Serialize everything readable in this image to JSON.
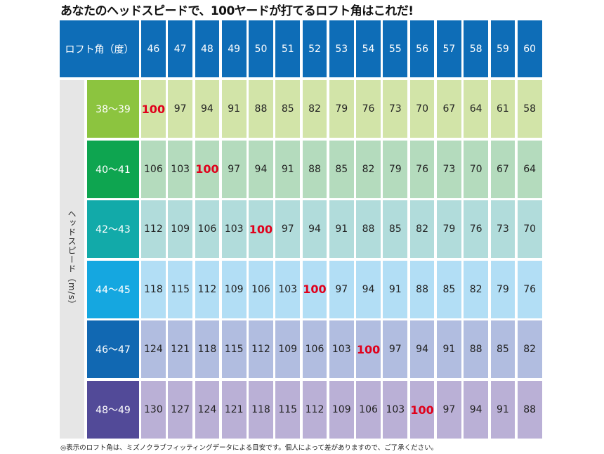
{
  "title": "あなたのヘッドスピードで、100ヤードが打てるロフト角はこれだ!",
  "footnote": "◎表示のロフト角は、ミズノクラブフィッティングデータによる目安です。個人によって差がありますので、ご了承ください。",
  "chart_data": {
    "type": "table",
    "corner_label": "ロフト角（度）",
    "row_axis_label": "ヘッドスピード（m/s）",
    "columns": [
      "46",
      "47",
      "48",
      "49",
      "50",
      "51",
      "52",
      "53",
      "54",
      "55",
      "56",
      "57",
      "58",
      "59",
      "60"
    ],
    "rows": [
      {
        "label": "38〜39",
        "values": [
          100,
          97,
          94,
          91,
          88,
          85,
          82,
          79,
          76,
          73,
          70,
          67,
          64,
          61,
          58
        ]
      },
      {
        "label": "40〜41",
        "values": [
          106,
          103,
          100,
          97,
          94,
          91,
          88,
          85,
          82,
          79,
          76,
          73,
          70,
          67,
          64
        ]
      },
      {
        "label": "42〜43",
        "values": [
          112,
          109,
          106,
          103,
          100,
          97,
          94,
          91,
          88,
          85,
          82,
          79,
          76,
          73,
          70
        ]
      },
      {
        "label": "44〜45",
        "values": [
          118,
          115,
          112,
          109,
          106,
          103,
          100,
          97,
          94,
          91,
          88,
          85,
          82,
          79,
          76
        ]
      },
      {
        "label": "46〜47",
        "values": [
          124,
          121,
          118,
          115,
          112,
          109,
          106,
          103,
          100,
          97,
          94,
          91,
          88,
          85,
          82
        ]
      },
      {
        "label": "48〜49",
        "values": [
          130,
          127,
          124,
          121,
          118,
          115,
          112,
          109,
          106,
          103,
          100,
          97,
          94,
          91,
          88
        ]
      }
    ],
    "highlight_value": 100,
    "colors": {
      "header": "#0e6db7",
      "highlight_text": "#e0001b",
      "row_label_bg": [
        "#8cc43f",
        "#0ea550",
        "#12aaa9",
        "#15a7e0",
        "#1168b2",
        "#524a98"
      ],
      "row_cell_bg": [
        "#d2e4a8",
        "#b4dbbd",
        "#b1dcdb",
        "#b2def5",
        "#b1bde0",
        "#bab0d6"
      ]
    }
  }
}
